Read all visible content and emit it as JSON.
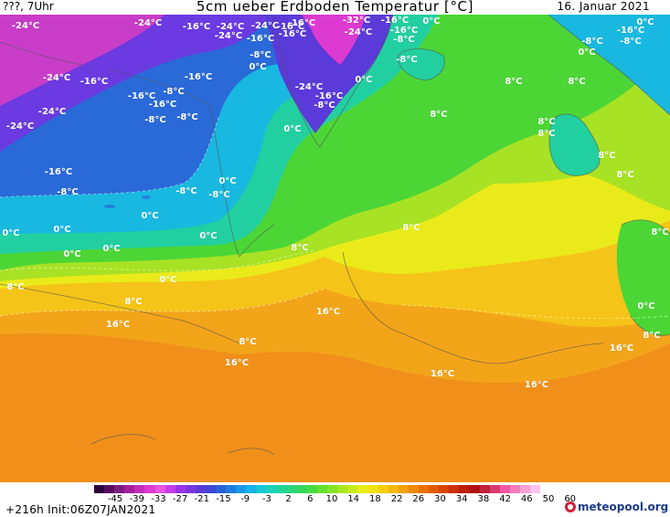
{
  "header": {
    "left": "???, 7Uhr",
    "title": "5cm ueber Erdboden Temperatur [°C]",
    "date": "16. Januar 2021"
  },
  "map": {
    "labels": [
      "-24°C",
      "-16°C",
      "-24°C",
      "-24°C",
      "-16°C",
      "-16°C",
      "-16°C",
      "-32°C",
      "-24°C",
      "-16°C",
      "0°C",
      "-24°C",
      "-16°C",
      "-8°C",
      "0°C",
      "-16°C",
      "-24°C",
      "-8°C",
      "-8°C",
      "0°C",
      "-8°C",
      "-16°C",
      "0°C",
      "0°C",
      "-24°C",
      "-16°C",
      "-16°C",
      "-8°C",
      "-24°C",
      "-8°C",
      "-16°C",
      "-8°C",
      "-24°C",
      "-8°C",
      "0°C",
      "8°C",
      "8°C",
      "-16°C",
      "-8°C",
      "-8°C",
      "-8°C",
      "0°C",
      "0°C",
      "0°C",
      "8°C",
      "8°C",
      "8°C",
      "8°C",
      "0°C",
      "0°C",
      "0°C",
      "0°C",
      "8°C",
      "8°C",
      "8°C",
      "16°C",
      "8°C",
      "16°C",
      "16°C",
      "16°C",
      "16°C",
      "0°C",
      "8°C",
      "16°C",
      "8°C",
      "-24°C",
      "-16°C",
      "-8°C",
      "-16°C",
      "8°C",
      "8°C",
      "0°C"
    ]
  },
  "legend": {
    "ticks": [
      "-45",
      "-39",
      "-33",
      "-27",
      "-21",
      "-15",
      "-9",
      "-3",
      "2",
      "6",
      "10",
      "14",
      "18",
      "22",
      "26",
      "30",
      "34",
      "38",
      "42",
      "46",
      "50",
      "60"
    ],
    "colors": [
      "#2a003a",
      "#5a0a5e",
      "#7e1a80",
      "#a4209e",
      "#c42eb8",
      "#dc3ad0",
      "#ea52e0",
      "#c43cea",
      "#9a34ea",
      "#7a36e0",
      "#5a3ad8",
      "#3e48d4",
      "#2a60d8",
      "#1e7ce0",
      "#1a98e6",
      "#16b4e8",
      "#18c8d8",
      "#1ed2b8",
      "#22d69a",
      "#2ad67c",
      "#34d85e",
      "#46dc3e",
      "#66e02c",
      "#86e426",
      "#a6e820",
      "#c6ec1c",
      "#e6ee18",
      "#f2e012",
      "#f6ce0e",
      "#f6b80c",
      "#f4a00a",
      "#f08808",
      "#ea7006",
      "#e25a04",
      "#d84404",
      "#cc3006",
      "#be1e0a",
      "#b01010",
      "#c0203c",
      "#d83a6e",
      "#ee58a0",
      "#f47cc0",
      "#f8a0d8",
      "#fcc4ea",
      "#ffffff"
    ]
  },
  "footer": {
    "init": "+216h Init:06Z07JAN2021",
    "logo": "meteopool.org"
  }
}
